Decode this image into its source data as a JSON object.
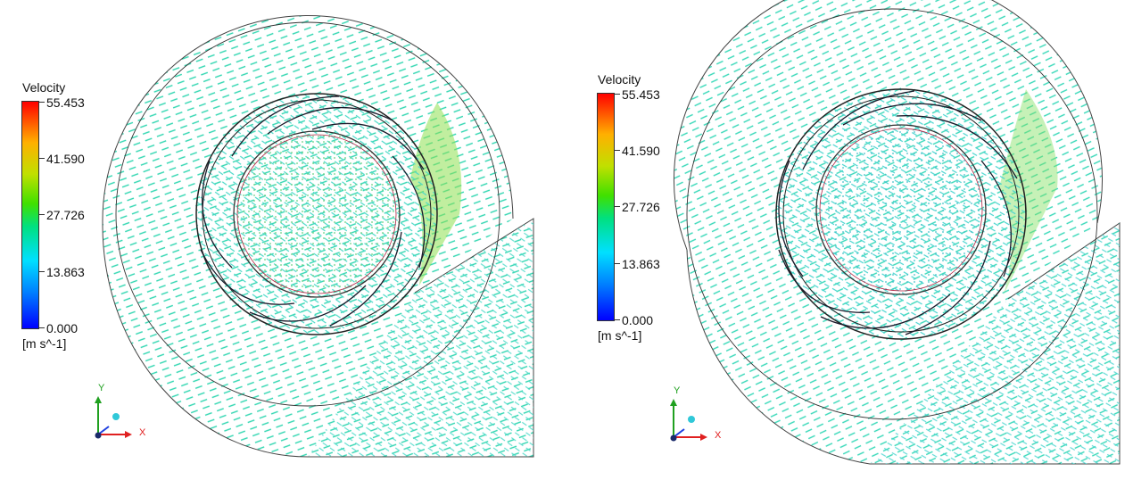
{
  "legend": {
    "title": "Velocity",
    "ticks": [
      "55.453",
      "41.590",
      "27.726",
      "13.863",
      "0.000"
    ],
    "unit": "[m s^-1]"
  },
  "axes": {
    "x": "X",
    "y": "Y"
  },
  "colors": {
    "vector_main": "#30d8a8",
    "vector_high": "#70e040",
    "vector_low": "#3a9cd8",
    "outline": "#222222",
    "axis_x": "#e02020",
    "axis_y": "#20a020"
  },
  "panels": [
    {
      "id": "left"
    },
    {
      "id": "right"
    }
  ]
}
